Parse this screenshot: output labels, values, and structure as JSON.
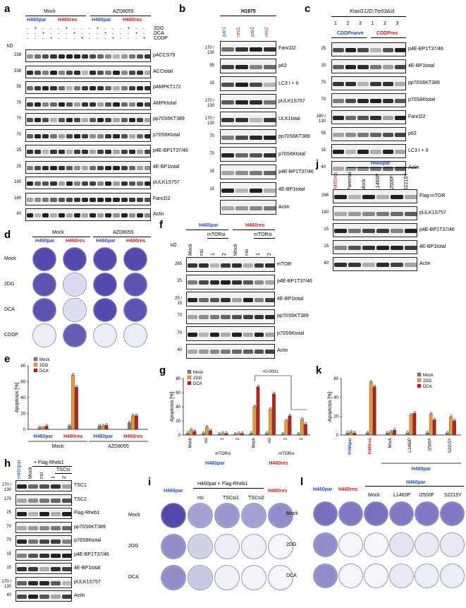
{
  "panels": {
    "a": "a",
    "b": "b",
    "c": "c",
    "d": "d",
    "e": "e",
    "f": "f",
    "g": "g",
    "h": "h",
    "i": "i",
    "j": "j",
    "k": "k",
    "l": "l"
  },
  "colors": {
    "blue": "#2a4fb5",
    "red": "#c8231c",
    "mock": "#7a7a7a",
    "dg2": "#e59a3a",
    "dca": "#b5231b",
    "dish": "#4a3fa8"
  },
  "a": {
    "group1": "Mock",
    "group2": "AZD8055",
    "cells": [
      "H460par",
      "H460res",
      "H460par",
      "H460res"
    ],
    "treat": [
      "2DG",
      "DCA",
      "CDDP"
    ],
    "kd": "kD",
    "rows": [
      {
        "kd": "238",
        "label": "pACCS79"
      },
      {
        "kd": "238",
        "label": "ACCtotal"
      },
      {
        "kd": "55",
        "label": "pAMPKT172"
      },
      {
        "kd": "70",
        "label": "AMPKtotal"
      },
      {
        "kd": "70",
        "label": "pp70S6KT389"
      },
      {
        "kd": "70",
        "label": "p70S6Ktotal"
      },
      {
        "kd": "25",
        "label": "p4E-BP1T37/46"
      },
      {
        "kd": "25",
        "label": "4E-BP1total"
      },
      {
        "kd": "180",
        "label": "pULK1S757"
      },
      {
        "kd": "180",
        "label": "FancD2"
      },
      {
        "kd": "40",
        "label": "Actin"
      }
    ]
  },
  "b": {
    "title": "H1975",
    "lanes": [
      "par1",
      "res1",
      "par2",
      "res2"
    ],
    "rows": [
      {
        "kd": "170 / 130",
        "label": "FancD2"
      },
      {
        "kd": "55",
        "label": "p62"
      },
      {
        "kd": "15",
        "label": "LC3 I + II"
      },
      {
        "kd": "170 / 130",
        "label": "pULK1S757"
      },
      {
        "kd": "170 / 130",
        "label": "ULK1total"
      },
      {
        "kd": "70",
        "label": "pp70S6KT389"
      },
      {
        "kd": "70",
        "label": "p70S6Ktotal"
      },
      {
        "kd": "15",
        "label": "p4E-BP1T37/46"
      },
      {
        "kd": "15",
        "label": "4E-BP1total"
      },
      {
        "kd": "",
        "label": "Actin"
      }
    ]
  },
  "c": {
    "title": "KrasG12D;Trp53Δ/Δ",
    "groups": [
      "CDDPnaive",
      "CDDPres"
    ],
    "lanes": [
      "1",
      "2",
      "3",
      "1",
      "2",
      "3"
    ],
    "rows": [
      {
        "kd": "25",
        "label": "p4E-BP1T37/46"
      },
      {
        "kd": "15",
        "label": "4E-BP1total"
      },
      {
        "kd": "70",
        "label": "pp70S6KT389"
      },
      {
        "kd": "70",
        "label": "p70S6Ktotal"
      },
      {
        "kd": "180 / 130",
        "label": "FancD2"
      },
      {
        "kd": "55",
        "label": "p62"
      },
      {
        "kd": "15",
        "label": "LC3 I + II"
      },
      {
        "kd": "40",
        "label": "Actin"
      }
    ]
  },
  "d": {
    "groups": [
      "Mock",
      "AZD8055"
    ],
    "cells": [
      "H460par",
      "H460res",
      "H460par",
      "H460res"
    ],
    "rows": [
      "Mock",
      "2DG",
      "DCA",
      "CDDP"
    ]
  },
  "e": {
    "ylabel": "Apoptosis [%]",
    "yticks": [
      "0",
      "20",
      "40",
      "60",
      "80"
    ],
    "legend": [
      "Mock",
      "2DG",
      "DCA"
    ],
    "xcells": [
      "H460par",
      "H460res",
      "H460par",
      "H460res"
    ],
    "xgroups": [
      "Mock",
      "AZD8055"
    ]
  },
  "f": {
    "cells": [
      "H460par",
      "H460res"
    ],
    "sub": "mTORsi",
    "lanes": [
      "Mock",
      "nsi",
      "1",
      "2",
      "Mock",
      "nsi",
      "1",
      "2"
    ],
    "kd": "kD",
    "rows": [
      {
        "kd": "265",
        "label": "mTOR"
      },
      {
        "kd": "25",
        "label": "p4E-BP1T37/46"
      },
      {
        "kd": "25 / 15",
        "label": "4E-BP1total"
      },
      {
        "kd": "70",
        "label": "pp70S6KT389"
      },
      {
        "kd": "70",
        "label": "p70S6Ktotal"
      },
      {
        "kd": "40",
        "label": "Actin"
      }
    ]
  },
  "g": {
    "ylabel": "Apoptosis [%]",
    "yticks": [
      "0",
      "20",
      "40",
      "60",
      "80"
    ],
    "legend": [
      "Mock",
      "2DG",
      "DCA"
    ],
    "pval": "<0.0001",
    "xlabels": [
      "Mock",
      "nsi",
      "1",
      "2",
      "Mock",
      "nsi",
      "1",
      "2"
    ],
    "sub": "mTORsi",
    "cells": [
      "H460par",
      "H460res"
    ]
  },
  "h": {
    "cells": [
      "H460par"
    ],
    "rheb": "+ Flag-Rheb1",
    "tsc": "TSCsi",
    "lanes": [
      "H460par",
      "Mock",
      "nsi",
      "1",
      "2"
    ],
    "rows": [
      {
        "kd": "170 / 130",
        "label": "TSC1"
      },
      {
        "kd": "170",
        "label": "TSC2"
      },
      {
        "kd": "25",
        "label": "Flag-Rheb1"
      },
      {
        "kd": "70",
        "label": "pp70S6KT389"
      },
      {
        "kd": "70",
        "label": "p70S6Ktotal"
      },
      {
        "kd": "15",
        "label": "p4E-BP1T37/46"
      },
      {
        "kd": "15",
        "label": "4E-BP1total"
      },
      {
        "kd": "170 / 130",
        "label": "pULK1S757"
      },
      {
        "kd": "40",
        "label": "Actin"
      }
    ]
  },
  "i": {
    "head1": "H460par",
    "head2": "H460par + Flag-Rheb1",
    "head3": "H460res",
    "cols": [
      "nsi",
      "TSCsi1",
      "TSCsi2"
    ],
    "rows": [
      "Mock",
      "2DG",
      "DCA"
    ]
  },
  "j": {
    "head": "H460par",
    "lanes": [
      "H460res",
      "Parental",
      "Mock",
      "L1460P",
      "I2500F",
      "S2215Y"
    ],
    "rows": [
      {
        "kd": "268",
        "label": "Flag-mTOR"
      },
      {
        "kd": "180",
        "label": "pULK1S757"
      },
      {
        "kd": "15",
        "label": "p4E-BP1T37/46"
      },
      {
        "kd": "15",
        "label": "4E-BP1total"
      },
      {
        "kd": "40",
        "label": "Actin"
      }
    ]
  },
  "k": {
    "ylabel": "Apoptosis [%]",
    "yticks": [
      "0",
      "20",
      "40",
      "60"
    ],
    "legend": [
      "Mock",
      "2DG",
      "DCA"
    ],
    "xlabels": [
      "H460par",
      "H460res",
      "Mock",
      "L1460P",
      "I2500F",
      "S2215Y"
    ],
    "group": "H460par"
  },
  "l": {
    "heads": [
      "H460par",
      "H460res"
    ],
    "head2": "H460par",
    "cols": [
      "Mock",
      "L1460P",
      "I2500F",
      "S2215Y"
    ],
    "rows": [
      "Mock",
      "2DG",
      "DCA"
    ]
  },
  "chart_data": [
    {
      "type": "bar",
      "panel": "e",
      "ylabel": "Apoptosis [%]",
      "ylim": [
        0,
        80
      ],
      "categories": [
        "Mock H460par",
        "Mock H460res",
        "AZD8055 H460par",
        "AZD8055 H460res"
      ],
      "series": [
        {
          "name": "Mock",
          "values": [
            2,
            4,
            4,
            8
          ]
        },
        {
          "name": "2DG",
          "values": [
            2,
            68,
            4,
            17
          ]
        },
        {
          "name": "DCA",
          "values": [
            4,
            53,
            5,
            17
          ]
        }
      ]
    },
    {
      "type": "bar",
      "panel": "g",
      "ylabel": "Apoptosis [%]",
      "ylim": [
        0,
        80
      ],
      "categories": [
        "Mock",
        "nsi",
        "1",
        "2",
        "Mock",
        "nsi",
        "1",
        "2"
      ],
      "series": [
        {
          "name": "Mock",
          "values": [
            2,
            2,
            1,
            1,
            2,
            2,
            1,
            1
          ]
        },
        {
          "name": "2DG",
          "values": [
            7,
            11,
            2,
            2,
            40,
            36,
            20,
            22
          ]
        },
        {
          "name": "DCA",
          "values": [
            5,
            6,
            2,
            2,
            68,
            58,
            27,
            15
          ]
        }
      ]
    },
    {
      "type": "bar",
      "panel": "k",
      "ylabel": "Apoptosis [%]",
      "ylim": [
        0,
        60
      ],
      "categories": [
        "H460par",
        "H460res",
        "Mock",
        "L1460P",
        "I2500F",
        "S2215Y"
      ],
      "series": [
        {
          "name": "Mock",
          "values": [
            2,
            2,
            2,
            2,
            2,
            2
          ]
        },
        {
          "name": "2DG",
          "values": [
            3,
            56,
            3,
            21,
            22,
            19
          ]
        },
        {
          "name": "DCA",
          "values": [
            2,
            51,
            5,
            23,
            16,
            15
          ]
        }
      ]
    }
  ]
}
